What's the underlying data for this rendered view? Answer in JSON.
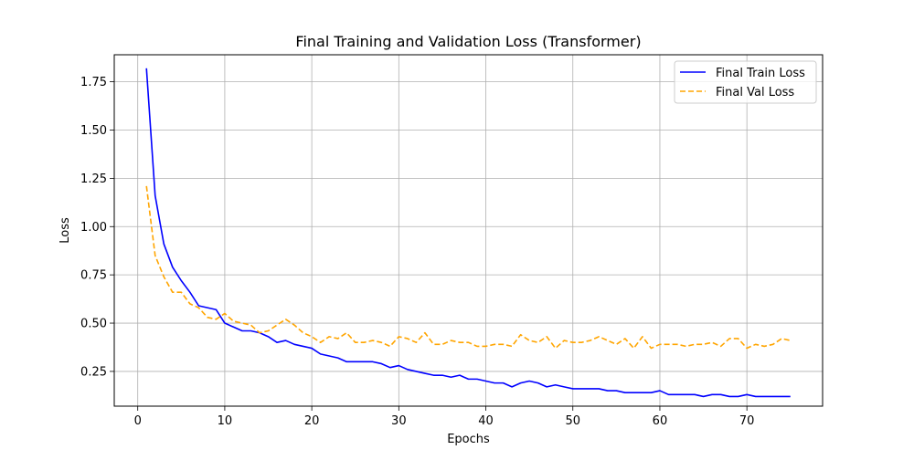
{
  "chart_data": {
    "type": "line",
    "title": "Final Training and Validation Loss (Transformer)",
    "xlabel": "Epochs",
    "ylabel": "Loss",
    "xlim": [
      -2.7,
      78.7
    ],
    "ylim": [
      0.07,
      1.89
    ],
    "xticks": [
      0,
      10,
      20,
      30,
      40,
      50,
      60,
      70
    ],
    "yticks": [
      0.25,
      0.5,
      0.75,
      1.0,
      1.25,
      1.5,
      1.75
    ],
    "xtick_labels": [
      "0",
      "10",
      "20",
      "30",
      "40",
      "50",
      "60",
      "70"
    ],
    "ytick_labels": [
      "0.25",
      "0.50",
      "0.75",
      "1.00",
      "1.25",
      "1.50",
      "1.75"
    ],
    "grid": true,
    "legend_position": "top-right",
    "x": [
      1,
      2,
      3,
      4,
      5,
      6,
      7,
      8,
      9,
      10,
      11,
      12,
      13,
      14,
      15,
      16,
      17,
      18,
      19,
      20,
      21,
      22,
      23,
      24,
      25,
      26,
      27,
      28,
      29,
      30,
      31,
      32,
      33,
      34,
      35,
      36,
      37,
      38,
      39,
      40,
      41,
      42,
      43,
      44,
      45,
      46,
      47,
      48,
      49,
      50,
      51,
      52,
      53,
      54,
      55,
      56,
      57,
      58,
      59,
      60,
      61,
      62,
      63,
      64,
      65,
      66,
      67,
      68,
      69,
      70,
      71,
      72,
      73,
      74,
      75
    ],
    "series": [
      {
        "name": "Final Train Loss",
        "color": "#0000ff",
        "style": "solid",
        "values": [
          1.82,
          1.16,
          0.91,
          0.79,
          0.72,
          0.66,
          0.59,
          0.58,
          0.57,
          0.5,
          0.48,
          0.46,
          0.46,
          0.45,
          0.43,
          0.4,
          0.41,
          0.39,
          0.38,
          0.37,
          0.34,
          0.33,
          0.32,
          0.3,
          0.3,
          0.3,
          0.3,
          0.29,
          0.27,
          0.28,
          0.26,
          0.25,
          0.24,
          0.23,
          0.23,
          0.22,
          0.23,
          0.21,
          0.21,
          0.2,
          0.19,
          0.19,
          0.17,
          0.19,
          0.2,
          0.19,
          0.17,
          0.18,
          0.17,
          0.16,
          0.16,
          0.16,
          0.16,
          0.15,
          0.15,
          0.14,
          0.14,
          0.14,
          0.14,
          0.15,
          0.13,
          0.13,
          0.13,
          0.13,
          0.12,
          0.13,
          0.13,
          0.12,
          0.12,
          0.13,
          0.12,
          0.12,
          0.12,
          0.12,
          0.12
        ]
      },
      {
        "name": "Final Val Loss",
        "color": "#ffa500",
        "style": "dashed",
        "values": [
          1.21,
          0.85,
          0.74,
          0.66,
          0.66,
          0.6,
          0.58,
          0.53,
          0.52,
          0.55,
          0.51,
          0.5,
          0.49,
          0.45,
          0.46,
          0.49,
          0.52,
          0.49,
          0.45,
          0.43,
          0.4,
          0.43,
          0.42,
          0.45,
          0.4,
          0.4,
          0.41,
          0.4,
          0.38,
          0.43,
          0.42,
          0.4,
          0.45,
          0.39,
          0.39,
          0.41,
          0.4,
          0.4,
          0.38,
          0.38,
          0.39,
          0.39,
          0.38,
          0.44,
          0.41,
          0.4,
          0.43,
          0.37,
          0.41,
          0.4,
          0.4,
          0.41,
          0.43,
          0.41,
          0.39,
          0.42,
          0.37,
          0.43,
          0.37,
          0.39,
          0.39,
          0.39,
          0.38,
          0.39,
          0.39,
          0.4,
          0.38,
          0.42,
          0.42,
          0.37,
          0.39,
          0.38,
          0.39,
          0.42,
          0.41
        ]
      }
    ]
  }
}
